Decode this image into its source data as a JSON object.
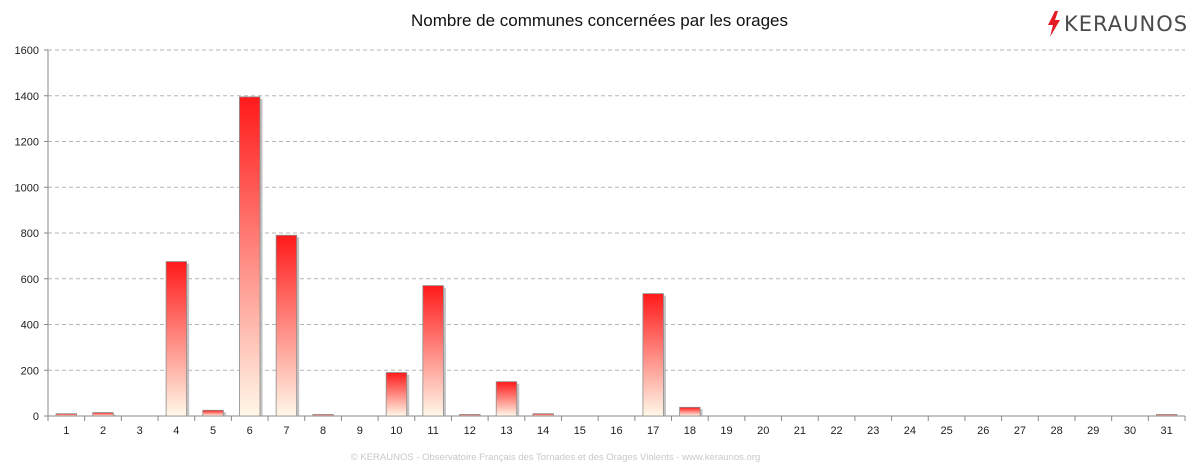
{
  "chart_data": {
    "type": "bar",
    "title": "Nombre de communes concernées par les orages",
    "xlabel": "",
    "ylabel": "",
    "ylim": [
      0,
      1600
    ],
    "yticks": [
      "0",
      "200",
      "400",
      "600",
      "800",
      "1000",
      "1200",
      "1400",
      "1600"
    ],
    "grid": true,
    "categories": [
      "1",
      "2",
      "3",
      "4",
      "5",
      "6",
      "7",
      "8",
      "9",
      "10",
      "11",
      "12",
      "13",
      "14",
      "15",
      "16",
      "17",
      "18",
      "19",
      "20",
      "21",
      "22",
      "23",
      "24",
      "25",
      "26",
      "27",
      "28",
      "29",
      "30",
      "31"
    ],
    "values": [
      10,
      15,
      0,
      675,
      25,
      1395,
      790,
      4,
      0,
      190,
      570,
      5,
      150,
      10,
      0,
      0,
      535,
      38,
      0,
      0,
      0,
      0,
      0,
      0,
      0,
      0,
      0,
      0,
      0,
      0,
      6
    ],
    "bar_colors": {
      "top": "#ff1a1a",
      "bottom": "#fff8e8",
      "edge": "#8c8c8c"
    }
  },
  "logo": {
    "text": "KERAUNOS",
    "icon": "lightning-bolt-icon",
    "accent": "#e31b23"
  },
  "footer": "© KERAUNOS - Observatoire Français des Tornades et des Orages Violents - www.keraunos.org"
}
